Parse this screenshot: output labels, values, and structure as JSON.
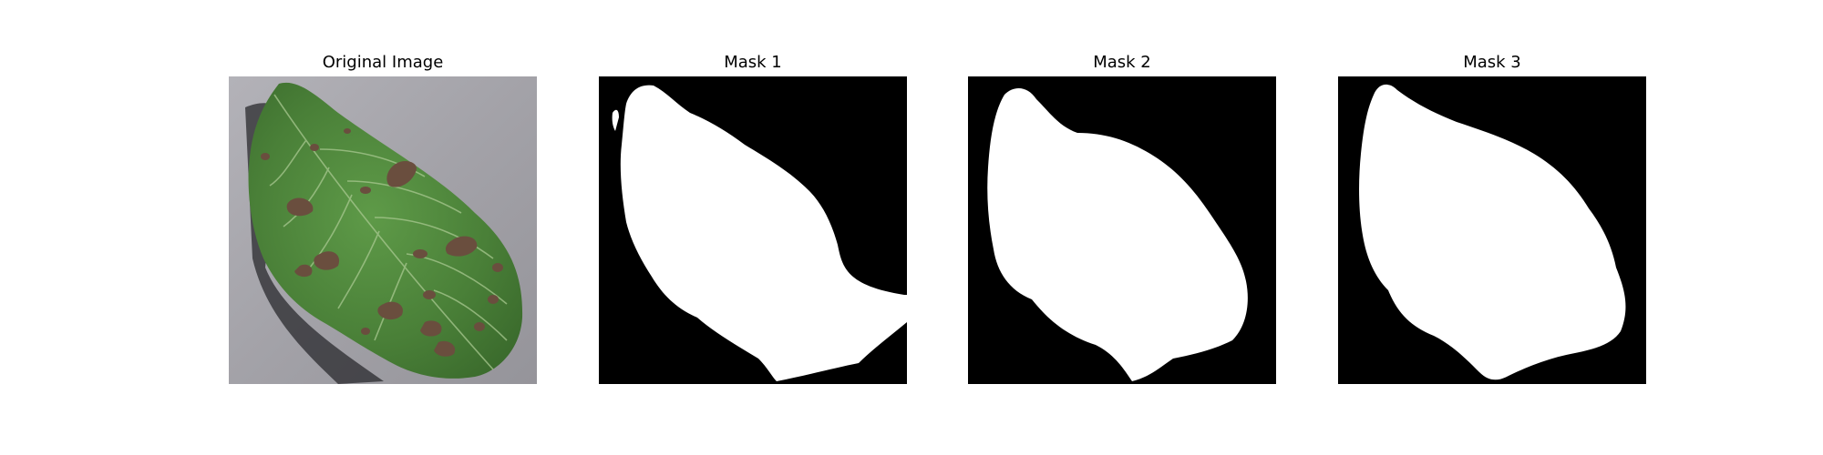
{
  "panels": [
    {
      "title": "Original Image",
      "image": "leaf-photo",
      "background": "#a6a5aa",
      "leaf_color": "#4a8038",
      "spot_color": "#6a4e3e"
    },
    {
      "title": "Mask 1",
      "image": "binary-mask",
      "background": "#000000",
      "foreground": "#ffffff"
    },
    {
      "title": "Mask 2",
      "image": "binary-mask",
      "background": "#000000",
      "foreground": "#ffffff"
    },
    {
      "title": "Mask 3",
      "image": "binary-mask",
      "background": "#000000",
      "foreground": "#ffffff"
    }
  ]
}
